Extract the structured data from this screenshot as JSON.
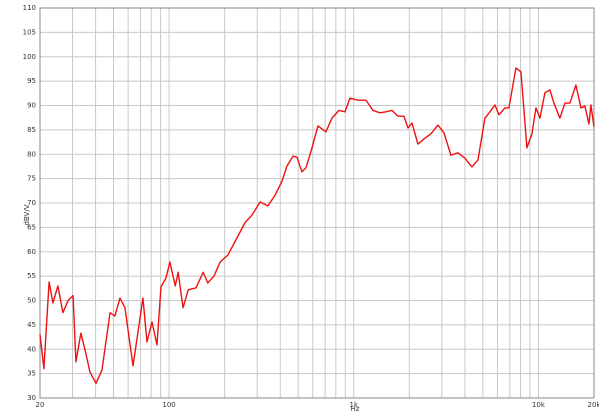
{
  "chart_data": {
    "type": "line",
    "x_label": "Hz",
    "y_label": "dBV/V",
    "log_x": true,
    "grid": true,
    "xlim": [
      20,
      20000
    ],
    "ylim": [
      30,
      110
    ],
    "xticks": [
      20,
      100,
      {
        "value": 1000,
        "label": "1k"
      },
      {
        "value": 10000,
        "label": "10k"
      },
      {
        "value": 20000,
        "label": "20k"
      }
    ],
    "xminor": [
      30,
      40,
      50,
      60,
      70,
      80,
      90,
      200,
      300,
      400,
      500,
      600,
      700,
      800,
      900,
      2000,
      3000,
      4000,
      5000,
      6000,
      7000,
      8000,
      9000
    ],
    "yticks": [
      30,
      35,
      40,
      45,
      50,
      55,
      60,
      65,
      70,
      75,
      80,
      85,
      90,
      95,
      100,
      105,
      110
    ],
    "series": [
      {
        "color": "#ee1111",
        "x": [
          20,
          21,
          22.4,
          23.5,
          25,
          26.6,
          28.4,
          30.2,
          31.3,
          33.3,
          35,
          37.3,
          40.2,
          43.3,
          47.9,
          50.9,
          54.2,
          57.7,
          63.8,
          72.2,
          75.9,
          80.8,
          86,
          90.4,
          96.2,
          101,
          108,
          112,
          119,
          127,
          140,
          153,
          162,
          175,
          189,
          208,
          227,
          258,
          281,
          311,
          343,
          375,
          409,
          435,
          469,
          493,
          524,
          551,
          594,
          640,
          707,
          762,
          832,
          896,
          954,
          1054,
          1164,
          1270,
          1386,
          1494,
          1610,
          1736,
          1870,
          1966,
          2066,
          2227,
          2430,
          2618,
          2857,
          3079,
          3360,
          3666,
          4000,
          4366,
          4704,
          5133,
          5464,
          5816,
          6112,
          6588,
          6924,
          7554,
          8042,
          8666,
          9226,
          9696,
          10192,
          10846,
          11542,
          12134,
          13078,
          13920,
          14812,
          15960,
          16992,
          17858,
          18770,
          19248,
          20000
        ],
        "values": [
          43,
          36,
          53.8,
          49.5,
          53,
          47.5,
          50,
          51,
          37.4,
          43.3,
          40,
          35.3,
          33,
          35.7,
          47.5,
          46.8,
          50.5,
          48.5,
          36.6,
          50.5,
          41.5,
          45.6,
          40.9,
          52.8,
          54.6,
          57.9,
          53,
          55.8,
          48.5,
          52.2,
          52.6,
          55.8,
          53.6,
          55,
          57.9,
          59.3,
          62,
          66,
          67.5,
          70.2,
          69.4,
          71.6,
          74.5,
          77.6,
          79.6,
          79.4,
          76.4,
          77.2,
          81.3,
          85.8,
          84.6,
          87.4,
          89,
          88.7,
          91.5,
          91.1,
          91.1,
          89,
          88.5,
          88.7,
          89,
          87.8,
          87.8,
          85.4,
          86.4,
          82.1,
          83.3,
          84.2,
          86,
          84.4,
          79.8,
          80.3,
          79.2,
          77.4,
          78.8,
          87.4,
          88.7,
          90.1,
          88.1,
          89.5,
          89.5,
          97.7,
          96.9,
          81.3,
          84.2,
          89.5,
          87.4,
          92.6,
          93.2,
          90.5,
          87.4,
          90.5,
          90.5,
          94.2,
          89.5,
          89.9,
          86.2,
          90.1,
          85.6
        ]
      }
    ]
  }
}
